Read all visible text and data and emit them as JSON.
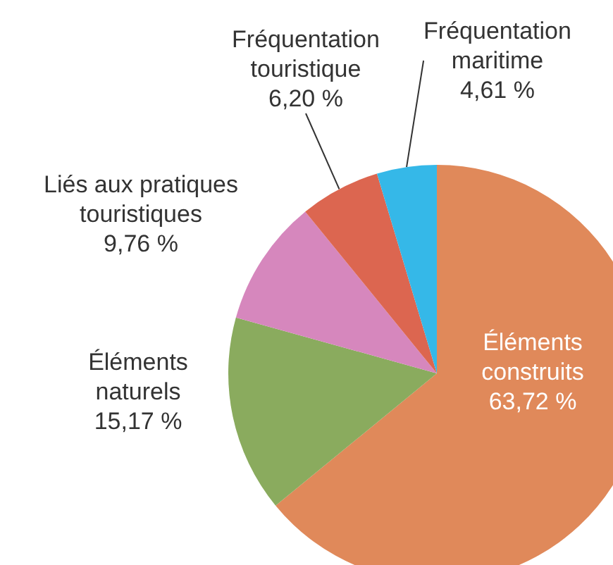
{
  "chart_data": {
    "type": "pie",
    "categories": [
      "Éléments construits",
      "Éléments naturels",
      "Liés aux pratiques touristiques",
      "Fréquentation touristique",
      "Fréquentation maritime"
    ],
    "values": [
      63.72,
      15.17,
      9.76,
      6.2,
      4.61
    ],
    "value_labels": [
      "63,72 %",
      "15,17 %",
      "9,76 %",
      "6,20 %",
      "4,61 %"
    ],
    "colors": [
      "#e0895a",
      "#8aab5e",
      "#d687bd",
      "#dc6650",
      "#35b8e8"
    ]
  }
}
